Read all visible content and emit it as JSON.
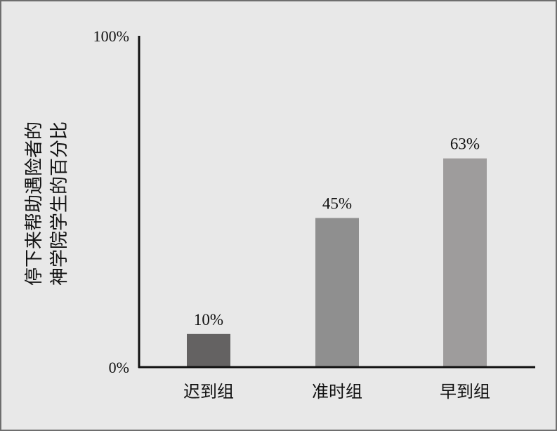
{
  "chart_data": {
    "type": "bar",
    "categories": [
      "迟到组",
      "准时组",
      "早到组"
    ],
    "values": [
      10,
      45,
      63
    ],
    "value_labels": [
      "10%",
      "45%",
      "63%"
    ],
    "ylabel_lines": [
      "停下来帮助遇险者的",
      "神学院学生的百分比"
    ],
    "ylim": [
      0,
      100
    ],
    "yticks": [
      {
        "value": 0,
        "label": "0%"
      },
      {
        "value": 100,
        "label": "100%"
      }
    ],
    "grid": false,
    "colors": [
      "#646262",
      "#8f8f8f",
      "#9e9c9c"
    ]
  }
}
